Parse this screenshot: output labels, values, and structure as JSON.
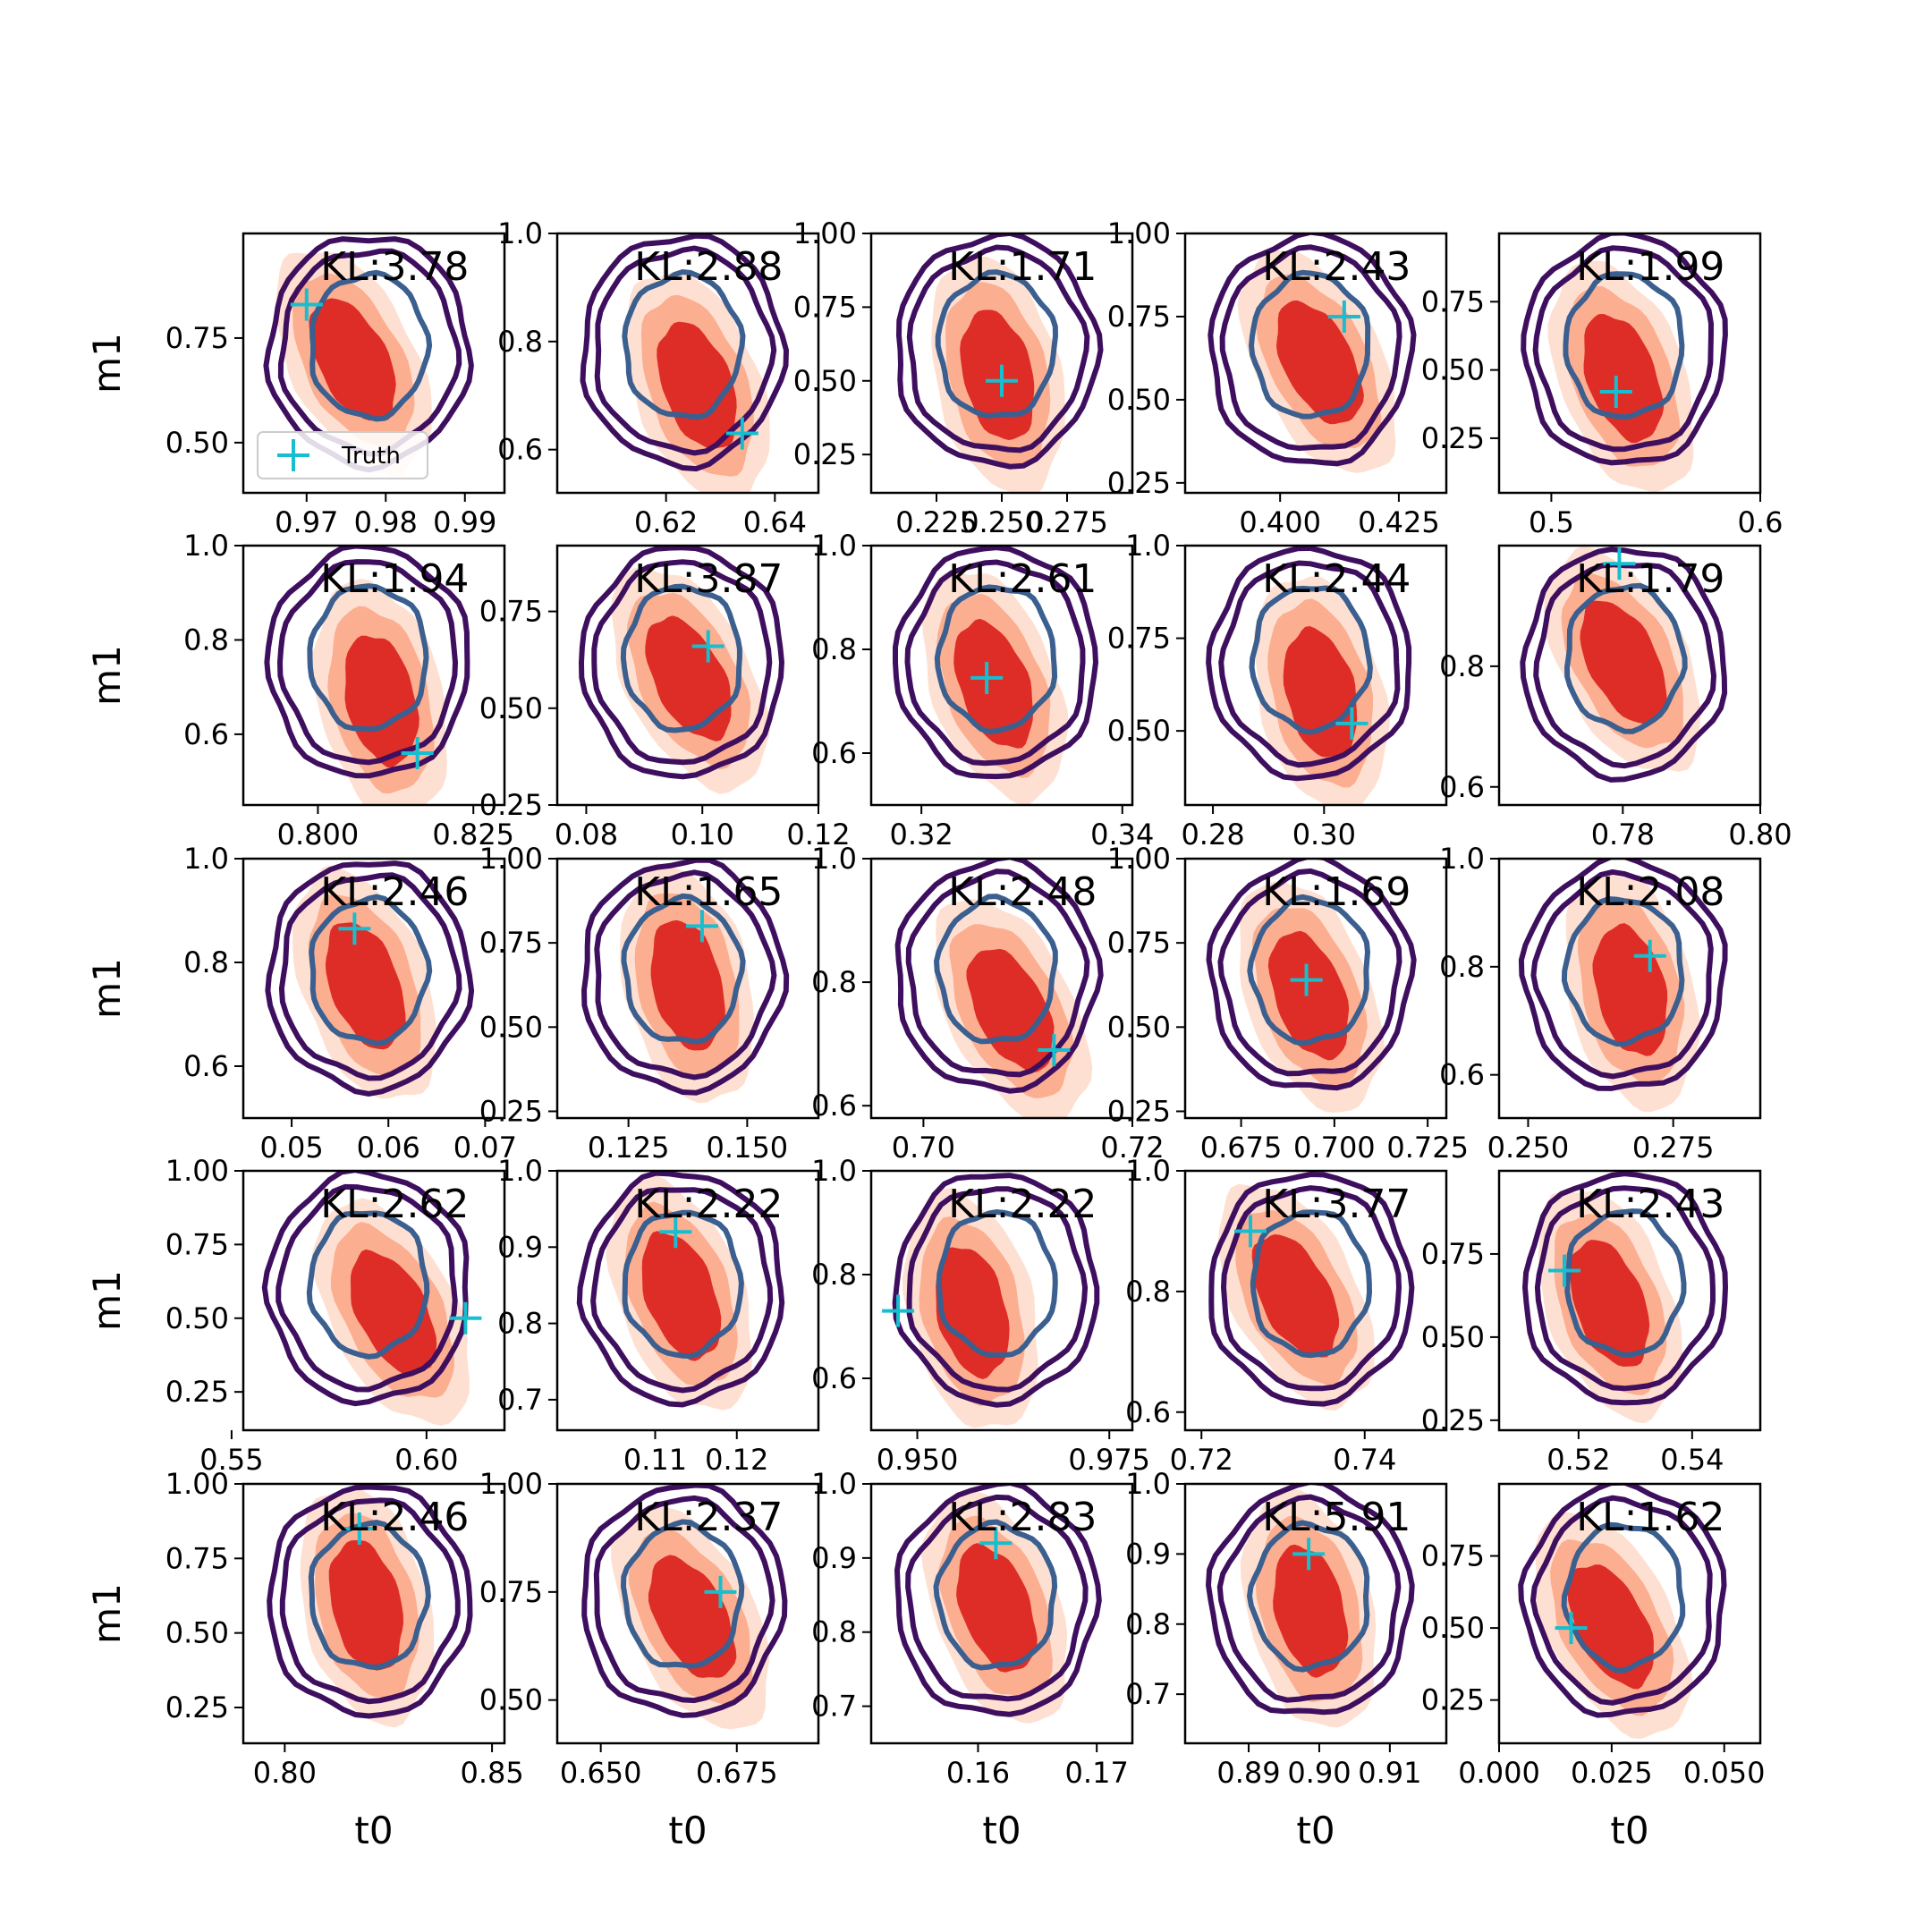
{
  "figure": {
    "xlabel": "t0",
    "ylabel": "m1",
    "legend_label": "Truth"
  },
  "colors": {
    "posterior_fill": [
      "#fee0d2",
      "#fcae91",
      "#de2d26"
    ],
    "contour_outer": "#3f0f5f",
    "contour_inner": "#3b5f8f",
    "truth_marker": "#17becf"
  },
  "chart_data": [
    {
      "type": "contour",
      "title": "KL:3.78",
      "xlabel": "",
      "ylabel": "m1",
      "xlim": [
        0.962,
        0.995
      ],
      "ylim": [
        0.38,
        1.0
      ],
      "xticks": [
        {
          "v": 0.97,
          "t": "0.97"
        },
        {
          "v": 0.98,
          "t": "0.98"
        },
        {
          "v": 0.99,
          "t": "0.99"
        }
      ],
      "yticks": [
        {
          "v": 0.5,
          "t": "0.50"
        },
        {
          "v": 0.75,
          "t": "0.75"
        }
      ],
      "truth": [
        0.97,
        0.83
      ],
      "legend": true
    },
    {
      "type": "contour",
      "title": "KL:2.88",
      "xlabel": "",
      "ylabel": "",
      "xlim": [
        0.6,
        0.648
      ],
      "ylim": [
        0.52,
        1.0
      ],
      "xticks": [
        {
          "v": 0.62,
          "t": "0.62"
        },
        {
          "v": 0.64,
          "t": "0.64"
        }
      ],
      "yticks": [
        {
          "v": 0.6,
          "t": "0.6"
        },
        {
          "v": 0.8,
          "t": "0.8"
        },
        {
          "v": 1.0,
          "t": "1.0"
        }
      ],
      "truth": [
        0.634,
        0.63
      ]
    },
    {
      "type": "contour",
      "title": "KL:1.71",
      "xlabel": "",
      "ylabel": "",
      "xlim": [
        0.2,
        0.3
      ],
      "ylim": [
        0.12,
        1.0
      ],
      "xticks": [
        {
          "v": 0.225,
          "t": "0.225"
        },
        {
          "v": 0.25,
          "t": "0.250"
        },
        {
          "v": 0.275,
          "t": "0.275"
        }
      ],
      "yticks": [
        {
          "v": 0.25,
          "t": "0.25"
        },
        {
          "v": 0.5,
          "t": "0.50"
        },
        {
          "v": 0.75,
          "t": "0.75"
        },
        {
          "v": 1.0,
          "t": "1.00"
        }
      ],
      "truth": [
        0.25,
        0.5
      ]
    },
    {
      "type": "contour",
      "title": "KL:2.43",
      "xlabel": "",
      "ylabel": "",
      "xlim": [
        0.38,
        0.435
      ],
      "ylim": [
        0.22,
        1.0
      ],
      "xticks": [
        {
          "v": 0.4,
          "t": "0.400"
        },
        {
          "v": 0.425,
          "t": "0.425"
        }
      ],
      "yticks": [
        {
          "v": 0.25,
          "t": "0.25"
        },
        {
          "v": 0.5,
          "t": "0.50"
        },
        {
          "v": 0.75,
          "t": "0.75"
        },
        {
          "v": 1.0,
          "t": "1.00"
        }
      ],
      "truth": [
        0.4135,
        0.75
      ]
    },
    {
      "type": "contour",
      "title": "KL:1.99",
      "xlabel": "",
      "ylabel": "",
      "xlim": [
        0.475,
        0.6
      ],
      "ylim": [
        0.05,
        1.0
      ],
      "xticks": [
        {
          "v": 0.5,
          "t": "0.5"
        },
        {
          "v": 0.6,
          "t": "0.6"
        }
      ],
      "yticks": [
        {
          "v": 0.25,
          "t": "0.25"
        },
        {
          "v": 0.5,
          "t": "0.50"
        },
        {
          "v": 0.75,
          "t": "0.75"
        }
      ],
      "truth": [
        0.531,
        0.42
      ]
    },
    {
      "type": "contour",
      "title": "KL:1.94",
      "xlabel": "",
      "ylabel": "m1",
      "xlim": [
        0.788,
        0.83
      ],
      "ylim": [
        0.45,
        1.0
      ],
      "xticks": [
        {
          "v": 0.8,
          "t": "0.800"
        },
        {
          "v": 0.825,
          "t": "0.825"
        }
      ],
      "yticks": [
        {
          "v": 0.6,
          "t": "0.6"
        },
        {
          "v": 0.8,
          "t": "0.8"
        },
        {
          "v": 1.0,
          "t": "1.0"
        }
      ],
      "truth": [
        0.816,
        0.56
      ]
    },
    {
      "type": "contour",
      "title": "KL:3.87",
      "xlabel": "",
      "ylabel": "",
      "xlim": [
        0.075,
        0.12
      ],
      "ylim": [
        0.25,
        0.92
      ],
      "xticks": [
        {
          "v": 0.08,
          "t": "0.08"
        },
        {
          "v": 0.1,
          "t": "0.10"
        },
        {
          "v": 0.12,
          "t": "0.12"
        }
      ],
      "yticks": [
        {
          "v": 0.25,
          "t": "0.25"
        },
        {
          "v": 0.5,
          "t": "0.50"
        },
        {
          "v": 0.75,
          "t": "0.75"
        }
      ],
      "truth": [
        0.101,
        0.66
      ]
    },
    {
      "type": "contour",
      "title": "KL:2.61",
      "xlabel": "",
      "ylabel": "",
      "xlim": [
        0.315,
        0.341
      ],
      "ylim": [
        0.5,
        1.0
      ],
      "xticks": [
        {
          "v": 0.32,
          "t": "0.32"
        },
        {
          "v": 0.34,
          "t": "0.34"
        }
      ],
      "yticks": [
        {
          "v": 0.6,
          "t": "0.6"
        },
        {
          "v": 0.8,
          "t": "0.8"
        },
        {
          "v": 1.0,
          "t": "1.0"
        }
      ],
      "truth": [
        0.3265,
        0.745
      ]
    },
    {
      "type": "contour",
      "title": "KL:2.44",
      "xlabel": "",
      "ylabel": "",
      "xlim": [
        0.275,
        0.322
      ],
      "ylim": [
        0.3,
        1.0
      ],
      "xticks": [
        {
          "v": 0.28,
          "t": "0.28"
        },
        {
          "v": 0.3,
          "t": "0.30"
        }
      ],
      "yticks": [
        {
          "v": 0.5,
          "t": "0.50"
        },
        {
          "v": 0.75,
          "t": "0.75"
        },
        {
          "v": 1.0,
          "t": "1.0"
        }
      ],
      "truth": [
        0.305,
        0.52
      ]
    },
    {
      "type": "contour",
      "title": "KL:1.79",
      "xlabel": "",
      "ylabel": "",
      "xlim": [
        0.762,
        0.8
      ],
      "ylim": [
        0.57,
        1.0
      ],
      "xticks": [
        {
          "v": 0.78,
          "t": "0.78"
        },
        {
          "v": 0.8,
          "t": "0.80"
        }
      ],
      "yticks": [
        {
          "v": 0.6,
          "t": "0.6"
        },
        {
          "v": 0.8,
          "t": "0.8"
        }
      ],
      "truth": [
        0.7795,
        0.97
      ]
    },
    {
      "type": "contour",
      "title": "KL:2.46",
      "xlabel": "",
      "ylabel": "m1",
      "xlim": [
        0.045,
        0.072
      ],
      "ylim": [
        0.5,
        1.0
      ],
      "xticks": [
        {
          "v": 0.05,
          "t": "0.05"
        },
        {
          "v": 0.06,
          "t": "0.06"
        },
        {
          "v": 0.07,
          "t": "0.07"
        }
      ],
      "yticks": [
        {
          "v": 0.6,
          "t": "0.6"
        },
        {
          "v": 0.8,
          "t": "0.8"
        },
        {
          "v": 1.0,
          "t": "1.0"
        }
      ],
      "truth": [
        0.0565,
        0.865
      ]
    },
    {
      "type": "contour",
      "title": "KL:1.65",
      "xlabel": "",
      "ylabel": "",
      "xlim": [
        0.11,
        0.165
      ],
      "ylim": [
        0.23,
        1.0
      ],
      "xticks": [
        {
          "v": 0.125,
          "t": "0.125"
        },
        {
          "v": 0.15,
          "t": "0.150"
        }
      ],
      "yticks": [
        {
          "v": 0.25,
          "t": "0.25"
        },
        {
          "v": 0.5,
          "t": "0.50"
        },
        {
          "v": 0.75,
          "t": "0.75"
        },
        {
          "v": 1.0,
          "t": "1.00"
        }
      ],
      "truth": [
        0.1405,
        0.8
      ]
    },
    {
      "type": "contour",
      "title": "KL:2.48",
      "xlabel": "",
      "ylabel": "",
      "xlim": [
        0.695,
        0.72
      ],
      "ylim": [
        0.58,
        1.0
      ],
      "xticks": [
        {
          "v": 0.7,
          "t": "0.70"
        },
        {
          "v": 0.72,
          "t": "0.72"
        }
      ],
      "yticks": [
        {
          "v": 0.6,
          "t": "0.6"
        },
        {
          "v": 0.8,
          "t": "0.8"
        },
        {
          "v": 1.0,
          "t": "1.0"
        }
      ],
      "truth": [
        0.7125,
        0.69
      ]
    },
    {
      "type": "contour",
      "title": "KL:1.69",
      "xlabel": "",
      "ylabel": "",
      "xlim": [
        0.66,
        0.73
      ],
      "ylim": [
        0.23,
        1.0
      ],
      "xticks": [
        {
          "v": 0.675,
          "t": "0.675"
        },
        {
          "v": 0.7,
          "t": "0.700"
        },
        {
          "v": 0.725,
          "t": "0.725"
        }
      ],
      "yticks": [
        {
          "v": 0.25,
          "t": "0.25"
        },
        {
          "v": 0.5,
          "t": "0.50"
        },
        {
          "v": 0.75,
          "t": "0.75"
        },
        {
          "v": 1.0,
          "t": "1.00"
        }
      ],
      "truth": [
        0.6925,
        0.64
      ]
    },
    {
      "type": "contour",
      "title": "KL:2.08",
      "xlabel": "",
      "ylabel": "",
      "xlim": [
        0.245,
        0.29
      ],
      "ylim": [
        0.52,
        1.0
      ],
      "xticks": [
        {
          "v": 0.25,
          "t": "0.250"
        },
        {
          "v": 0.275,
          "t": "0.275"
        }
      ],
      "yticks": [
        {
          "v": 0.6,
          "t": "0.6"
        },
        {
          "v": 0.8,
          "t": "0.8"
        },
        {
          "v": 1.0,
          "t": "1.0"
        }
      ],
      "truth": [
        0.271,
        0.82
      ]
    },
    {
      "type": "contour",
      "title": "KL:2.62",
      "xlabel": "",
      "ylabel": "m1",
      "xlim": [
        0.553,
        0.62
      ],
      "ylim": [
        0.12,
        1.0
      ],
      "xticks": [
        {
          "v": 0.55,
          "t": "0.55"
        },
        {
          "v": 0.6,
          "t": "0.60"
        }
      ],
      "yticks": [
        {
          "v": 0.25,
          "t": "0.25"
        },
        {
          "v": 0.5,
          "t": "0.50"
        },
        {
          "v": 0.75,
          "t": "0.75"
        },
        {
          "v": 1.0,
          "t": "1.00"
        }
      ],
      "truth": [
        0.61,
        0.5
      ]
    },
    {
      "type": "contour",
      "title": "KL:2.22",
      "xlabel": "",
      "ylabel": "",
      "xlim": [
        0.098,
        0.13
      ],
      "ylim": [
        0.66,
        1.0
      ],
      "xticks": [
        {
          "v": 0.11,
          "t": "0.11"
        },
        {
          "v": 0.12,
          "t": "0.12"
        }
      ],
      "yticks": [
        {
          "v": 0.7,
          "t": "0.7"
        },
        {
          "v": 0.8,
          "t": "0.8"
        },
        {
          "v": 0.9,
          "t": "0.9"
        },
        {
          "v": 1.0,
          "t": "1.0"
        }
      ],
      "truth": [
        0.1125,
        0.92
      ]
    },
    {
      "type": "contour",
      "title": "KL:2.22",
      "xlabel": "",
      "ylabel": "",
      "xlim": [
        0.944,
        0.978
      ],
      "ylim": [
        0.5,
        1.0
      ],
      "xticks": [
        {
          "v": 0.95,
          "t": "0.950"
        },
        {
          "v": 0.975,
          "t": "0.975"
        }
      ],
      "yticks": [
        {
          "v": 0.6,
          "t": "0.6"
        },
        {
          "v": 0.8,
          "t": "0.8"
        },
        {
          "v": 1.0,
          "t": "1.0"
        }
      ],
      "truth": [
        0.9475,
        0.73
      ]
    },
    {
      "type": "contour",
      "title": "KL:3.77",
      "xlabel": "",
      "ylabel": "",
      "xlim": [
        0.718,
        0.75
      ],
      "ylim": [
        0.57,
        1.0
      ],
      "xticks": [
        {
          "v": 0.72,
          "t": "0.72"
        },
        {
          "v": 0.74,
          "t": "0.74"
        }
      ],
      "yticks": [
        {
          "v": 0.6,
          "t": "0.6"
        },
        {
          "v": 0.8,
          "t": "0.8"
        },
        {
          "v": 1.0,
          "t": "1.0"
        }
      ],
      "truth": [
        0.726,
        0.9
      ]
    },
    {
      "type": "contour",
      "title": "KL:2.43",
      "xlabel": "",
      "ylabel": "",
      "xlim": [
        0.506,
        0.552
      ],
      "ylim": [
        0.22,
        1.0
      ],
      "xticks": [
        {
          "v": 0.52,
          "t": "0.52"
        },
        {
          "v": 0.54,
          "t": "0.54"
        }
      ],
      "yticks": [
        {
          "v": 0.25,
          "t": "0.25"
        },
        {
          "v": 0.5,
          "t": "0.50"
        },
        {
          "v": 0.75,
          "t": "0.75"
        }
      ],
      "truth": [
        0.5175,
        0.7
      ]
    },
    {
      "type": "contour",
      "title": "KL:2.46",
      "xlabel": "t0",
      "ylabel": "m1",
      "xlim": [
        0.79,
        0.853
      ],
      "ylim": [
        0.13,
        1.0
      ],
      "xticks": [
        {
          "v": 0.8,
          "t": "0.80"
        },
        {
          "v": 0.85,
          "t": "0.85"
        }
      ],
      "yticks": [
        {
          "v": 0.25,
          "t": "0.25"
        },
        {
          "v": 0.5,
          "t": "0.50"
        },
        {
          "v": 0.75,
          "t": "0.75"
        },
        {
          "v": 1.0,
          "t": "1.00"
        }
      ],
      "truth": [
        0.818,
        0.85
      ]
    },
    {
      "type": "contour",
      "title": "KL:2.37",
      "xlabel": "t0",
      "ylabel": "",
      "xlim": [
        0.642,
        0.69
      ],
      "ylim": [
        0.4,
        1.0
      ],
      "xticks": [
        {
          "v": 0.65,
          "t": "0.650"
        },
        {
          "v": 0.675,
          "t": "0.675"
        }
      ],
      "yticks": [
        {
          "v": 0.5,
          "t": "0.50"
        },
        {
          "v": 0.75,
          "t": "0.75"
        },
        {
          "v": 1.0,
          "t": "1.00"
        }
      ],
      "truth": [
        0.672,
        0.75
      ]
    },
    {
      "type": "contour",
      "title": "KL:2.83",
      "xlabel": "t0",
      "ylabel": "",
      "xlim": [
        0.151,
        0.173
      ],
      "ylim": [
        0.65,
        1.0
      ],
      "xticks": [
        {
          "v": 0.16,
          "t": "0.16"
        },
        {
          "v": 0.17,
          "t": "0.17"
        }
      ],
      "yticks": [
        {
          "v": 0.7,
          "t": "0.7"
        },
        {
          "v": 0.8,
          "t": "0.8"
        },
        {
          "v": 0.9,
          "t": "0.9"
        },
        {
          "v": 1.0,
          "t": "1.0"
        }
      ],
      "truth": [
        0.1615,
        0.92
      ]
    },
    {
      "type": "contour",
      "title": "KL:5.91",
      "xlabel": "t0",
      "ylabel": "",
      "xlim": [
        0.881,
        0.918
      ],
      "ylim": [
        0.63,
        1.0
      ],
      "xticks": [
        {
          "v": 0.89,
          "t": "0.89"
        },
        {
          "v": 0.9,
          "t": "0.90"
        },
        {
          "v": 0.91,
          "t": "0.91"
        }
      ],
      "yticks": [
        {
          "v": 0.7,
          "t": "0.7"
        },
        {
          "v": 0.8,
          "t": "0.8"
        },
        {
          "v": 0.9,
          "t": "0.9"
        },
        {
          "v": 1.0,
          "t": "1.0"
        }
      ],
      "truth": [
        0.8985,
        0.9
      ]
    },
    {
      "type": "contour",
      "title": "KL:1.62",
      "xlabel": "t0",
      "ylabel": "",
      "xlim": [
        0.0,
        0.058
      ],
      "ylim": [
        0.1,
        1.0
      ],
      "xticks": [
        {
          "v": 0.0,
          "t": "0.000"
        },
        {
          "v": 0.025,
          "t": "0.025"
        },
        {
          "v": 0.05,
          "t": "0.050"
        }
      ],
      "yticks": [
        {
          "v": 0.25,
          "t": "0.25"
        },
        {
          "v": 0.5,
          "t": "0.50"
        },
        {
          "v": 0.75,
          "t": "0.75"
        }
      ],
      "truth": [
        0.016,
        0.5
      ]
    }
  ]
}
